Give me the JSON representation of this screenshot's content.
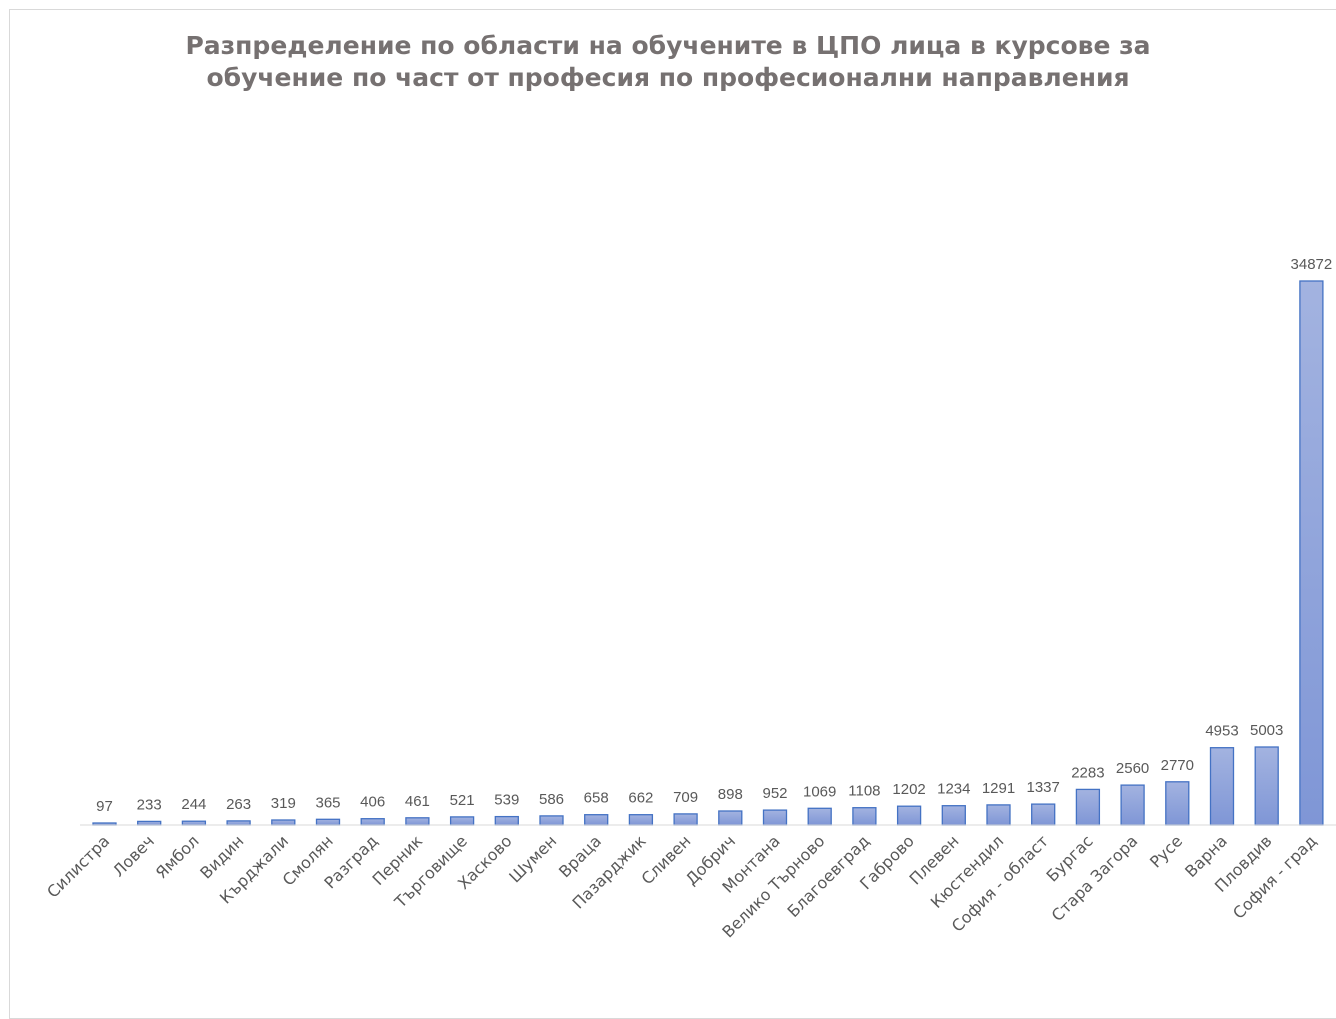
{
  "chart_data": {
    "type": "bar",
    "title": [
      "Разпределение по области на обучените в ЦПО лица в курсове за",
      "обучение по част от професия по професионални направления"
    ],
    "categories": [
      "Силистра",
      "Ловеч",
      "Ямбол",
      "Видин",
      "Кърджали",
      "Смолян",
      "Разград",
      "Перник",
      "Търговище",
      "Хасково",
      "Шумен",
      "Враца",
      "Пазарджик",
      "Сливен",
      "Добрич",
      "Монтана",
      "Велико Търново",
      "Благоевград",
      "Габрово",
      "Плевен",
      "Кюстендил",
      "София - област",
      "Бургас",
      "Стара Загора",
      "Русе",
      "Варна",
      "Пловдив",
      "София - град"
    ],
    "values": [
      97,
      233,
      244,
      263,
      319,
      365,
      406,
      461,
      521,
      539,
      586,
      658,
      662,
      709,
      898,
      952,
      1069,
      1108,
      1202,
      1234,
      1291,
      1337,
      2283,
      2560,
      2770,
      4953,
      5003,
      34872
    ],
    "data_labels": [
      "97",
      "233",
      "244",
      "263",
      "319",
      "365",
      "406",
      "461",
      "521",
      "539",
      "586",
      "658",
      "662",
      "709",
      "898",
      "952",
      "1069",
      "1108",
      "1202",
      "1234",
      "1291",
      "1337",
      "2283",
      "2560",
      "2770",
      "4953",
      "5003",
      "34872"
    ],
    "xlabel": "",
    "ylabel": "",
    "ylim": [
      0,
      34872
    ],
    "grid": false,
    "legend": "none",
    "colors": {
      "bar_fill_top": "#a3b3e0",
      "bar_fill_bottom": "#7f96d6",
      "bar_stroke": "#4472c4",
      "axis": "#d9d9d9",
      "text": "#595959",
      "title": "#767171"
    }
  }
}
